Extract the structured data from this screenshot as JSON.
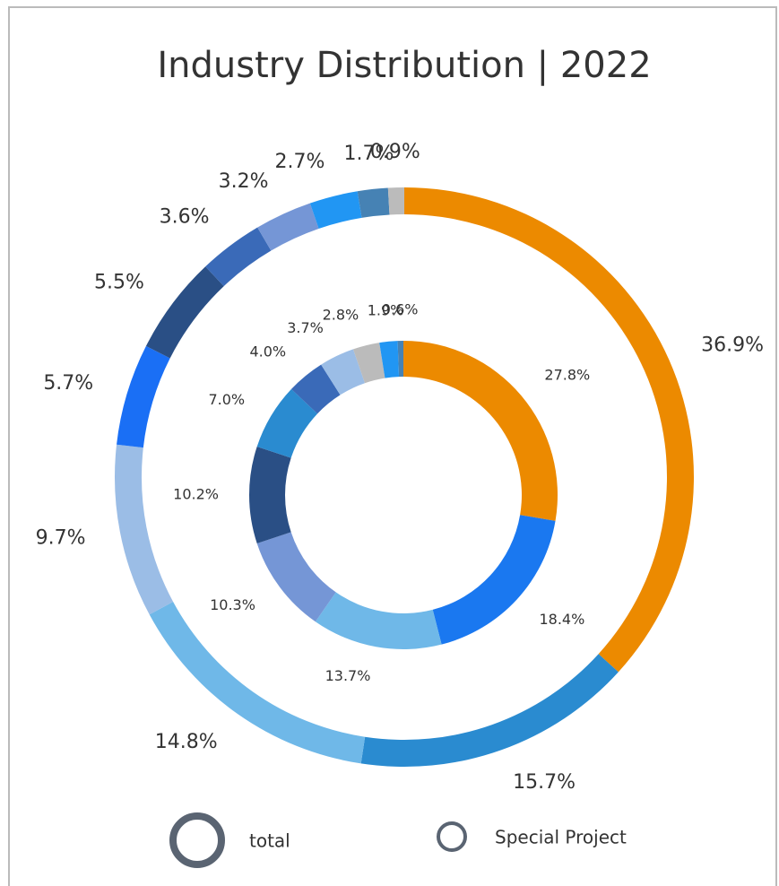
{
  "chart_data": {
    "type": "donut",
    "title": "Industry Distribution | 2022",
    "legend_color": "#5a6472",
    "series": [
      {
        "name": "total",
        "values": [
          36.9,
          15.7,
          14.8,
          9.7,
          5.7,
          5.5,
          3.6,
          3.2,
          2.7,
          1.7,
          0.9
        ],
        "value_labels": [
          "36.9%",
          "15.7%",
          "14.8%",
          "9.7%",
          "5.7%",
          "5.5%",
          "3.6%",
          "3.2%",
          "2.7%",
          "1.7%",
          "0.9%"
        ],
        "colors": [
          "#ec8a00",
          "#2a8bd0",
          "#6fb8e8",
          "#9bbde6",
          "#1a6ff5",
          "#2a4f85",
          "#3a6ab8",
          "#7596d6",
          "#2196f3",
          "#4682b4",
          "#bbbbbb"
        ]
      },
      {
        "name": "Special Project",
        "values": [
          27.8,
          18.4,
          13.7,
          10.3,
          10.2,
          7.0,
          4.0,
          3.7,
          2.8,
          1.9,
          0.6
        ],
        "value_labels": [
          "27.8%",
          "18.4%",
          "13.7%",
          "10.3%",
          "10.2%",
          "7.0%",
          "4.0%",
          "3.7%",
          "2.8%",
          "1.9%",
          "0.6%"
        ],
        "colors": [
          "#ec8a00",
          "#1a78f0",
          "#6fb8e8",
          "#7596d6",
          "#2a4f85",
          "#2a8bd0",
          "#3a6ab8",
          "#9bbde6",
          "#bbbbbb",
          "#2196f3",
          "#4682b4"
        ]
      }
    ]
  }
}
